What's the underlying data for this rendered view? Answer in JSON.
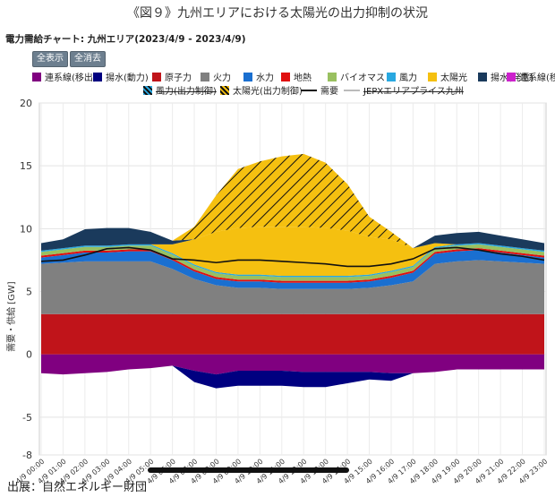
{
  "figure_title": "《図９》九州エリアにおける太陽光の出力抑制の状況",
  "chart_title": "電力需給チャート: 九州エリア(2023/4/9 - 2023/4/9)",
  "buttons": {
    "show_all": "全表示",
    "hide_all": "全消去"
  },
  "source": "出展：自然エネルギー財団",
  "legend": [
    {
      "name": "連系線(移出)",
      "color": "#800080",
      "kind": "box"
    },
    {
      "name": "揚水(動力)",
      "color": "#000080",
      "kind": "box"
    },
    {
      "name": "原子力",
      "color": "#c0141a",
      "kind": "box"
    },
    {
      "name": "火力",
      "color": "#808080",
      "kind": "box"
    },
    {
      "name": "水力",
      "color": "#1a6fd0",
      "kind": "box"
    },
    {
      "name": "地熱",
      "color": "#e01010",
      "kind": "box"
    },
    {
      "name": "バイオマス",
      "color": "#99c060",
      "kind": "box"
    },
    {
      "name": "風力",
      "color": "#29a8e0",
      "kind": "box"
    },
    {
      "name": "太陽光",
      "color": "#f5c010",
      "kind": "box"
    },
    {
      "name": "揚水(発電)",
      "color": "#1a3a5c",
      "kind": "box"
    },
    {
      "name": "連系線(移入)",
      "color": "#cc22cc",
      "kind": "box"
    },
    {
      "name": "風力(出力制御)",
      "color": "#29a8e0",
      "kind": "hatch"
    },
    {
      "name": "太陽光(出力制御)",
      "color": "#f5c010",
      "kind": "hatch"
    },
    {
      "name": "需要",
      "color": "#111111",
      "kind": "line"
    },
    {
      "name": "JEPXエリアプライス九州",
      "color": "#bbbbbb",
      "kind": "line"
    }
  ],
  "chart_data": {
    "type": "area",
    "title": "電力需給チャート: 九州エリア(2023/4/9 - 2023/4/9)",
    "ylabel": "需要・供給 [GW]",
    "ylim": [
      -8,
      20
    ],
    "yticks": [
      -8,
      -5,
      0,
      5,
      10,
      15,
      20
    ],
    "grid": true,
    "x": [
      "4/9 00:00",
      "4/9 01:00",
      "4/9 02:00",
      "4/9 03:00",
      "4/9 04:00",
      "4/9 05:00",
      "4/9 06:00",
      "4/9 07:00",
      "4/9 08:00",
      "4/9 09:00",
      "4/9 10:00",
      "4/9 11:00",
      "4/9 12:00",
      "4/9 13:00",
      "4/9 14:00",
      "4/9 15:00",
      "4/9 16:00",
      "4/9 17:00",
      "4/9 18:00",
      "4/9 19:00",
      "4/9 20:00",
      "4/9 21:00",
      "4/9 22:00",
      "4/9 23:00"
    ],
    "positive_series": [
      {
        "name": "原子力",
        "color": "#c0141a",
        "values": [
          3.2,
          3.2,
          3.2,
          3.2,
          3.2,
          3.2,
          3.2,
          3.2,
          3.2,
          3.2,
          3.2,
          3.2,
          3.2,
          3.2,
          3.2,
          3.2,
          3.2,
          3.2,
          3.2,
          3.2,
          3.2,
          3.2,
          3.2,
          3.2
        ]
      },
      {
        "name": "火力",
        "color": "#808080",
        "values": [
          4.0,
          4.1,
          4.2,
          4.2,
          4.2,
          4.2,
          3.6,
          2.8,
          2.3,
          2.1,
          2.1,
          2.0,
          2.0,
          2.0,
          2.0,
          2.1,
          2.3,
          2.6,
          4.0,
          4.2,
          4.3,
          4.2,
          4.1,
          4.0
        ]
      },
      {
        "name": "水力",
        "color": "#1a6fd0",
        "values": [
          0.5,
          0.6,
          0.7,
          0.7,
          0.8,
          0.8,
          0.7,
          0.6,
          0.5,
          0.5,
          0.5,
          0.5,
          0.5,
          0.5,
          0.5,
          0.5,
          0.6,
          0.7,
          0.8,
          0.8,
          0.8,
          0.7,
          0.6,
          0.5
        ]
      },
      {
        "name": "地熱",
        "color": "#e01010",
        "values": [
          0.15,
          0.15,
          0.15,
          0.15,
          0.15,
          0.15,
          0.15,
          0.15,
          0.15,
          0.15,
          0.15,
          0.15,
          0.15,
          0.15,
          0.15,
          0.15,
          0.15,
          0.15,
          0.15,
          0.15,
          0.15,
          0.15,
          0.15,
          0.15
        ]
      },
      {
        "name": "バイオマス",
        "color": "#99c060",
        "values": [
          0.3,
          0.3,
          0.3,
          0.3,
          0.3,
          0.3,
          0.3,
          0.3,
          0.3,
          0.3,
          0.3,
          0.3,
          0.3,
          0.3,
          0.3,
          0.3,
          0.3,
          0.3,
          0.3,
          0.3,
          0.3,
          0.3,
          0.3,
          0.3
        ]
      },
      {
        "name": "風力",
        "color": "#29a8e0",
        "values": [
          0.1,
          0.1,
          0.1,
          0.1,
          0.1,
          0.1,
          0.1,
          0.1,
          0.1,
          0.1,
          0.1,
          0.1,
          0.1,
          0.1,
          0.1,
          0.1,
          0.1,
          0.1,
          0.1,
          0.1,
          0.1,
          0.1,
          0.1,
          0.1
        ]
      },
      {
        "name": "太陽光",
        "color": "#f5c010",
        "values": [
          0,
          0,
          0,
          0,
          0,
          0,
          0.7,
          2.0,
          3.2,
          3.7,
          3.8,
          3.9,
          3.9,
          3.8,
          3.6,
          3.0,
          2.5,
          1.4,
          0.3,
          0,
          0,
          0,
          0,
          0
        ]
      },
      {
        "name": "揚水(発電)",
        "color": "#1a3a5c",
        "values": [
          0.6,
          0.7,
          1.3,
          1.4,
          1.3,
          1.0,
          0.3,
          0,
          0,
          0,
          0,
          0,
          0,
          0,
          0,
          0,
          0,
          0,
          0.6,
          0.9,
          0.9,
          0.8,
          0.7,
          0.6
        ]
      },
      {
        "name": "太陽光(出力制御)",
        "color": "#f5c010",
        "hatch": true,
        "values": [
          0,
          0,
          0,
          0,
          0,
          0,
          0,
          1.0,
          2.9,
          4.7,
          5.2,
          5.6,
          5.8,
          5.2,
          3.7,
          1.6,
          0.6,
          0,
          0,
          0,
          0,
          0,
          0,
          0
        ]
      }
    ],
    "negative_series": [
      {
        "name": "連系線(移出)",
        "color": "#800080",
        "values": [
          -1.5,
          -1.6,
          -1.5,
          -1.4,
          -1.2,
          -1.1,
          -0.9,
          -1.3,
          -1.6,
          -1.3,
          -1.3,
          -1.3,
          -1.4,
          -1.4,
          -1.4,
          -1.4,
          -1.5,
          -1.5,
          -1.4,
          -1.2,
          -1.2,
          -1.2,
          -1.2,
          -1.2
        ]
      },
      {
        "name": "揚水(動力)",
        "color": "#000080",
        "values": [
          0,
          0,
          0,
          0,
          0,
          0,
          0,
          -0.9,
          -1.1,
          -1.2,
          -1.2,
          -1.2,
          -1.2,
          -1.2,
          -0.9,
          -0.6,
          -0.6,
          0,
          0,
          0,
          0,
          0,
          0,
          0
        ]
      }
    ],
    "demand": {
      "name": "需要",
      "color": "#111111",
      "values": [
        7.4,
        7.5,
        7.9,
        8.4,
        8.5,
        8.3,
        7.6,
        7.5,
        7.3,
        7.5,
        7.5,
        7.4,
        7.3,
        7.2,
        7.0,
        7.0,
        7.2,
        7.6,
        8.4,
        8.5,
        8.3,
        8.0,
        7.8,
        7.5
      ]
    }
  }
}
